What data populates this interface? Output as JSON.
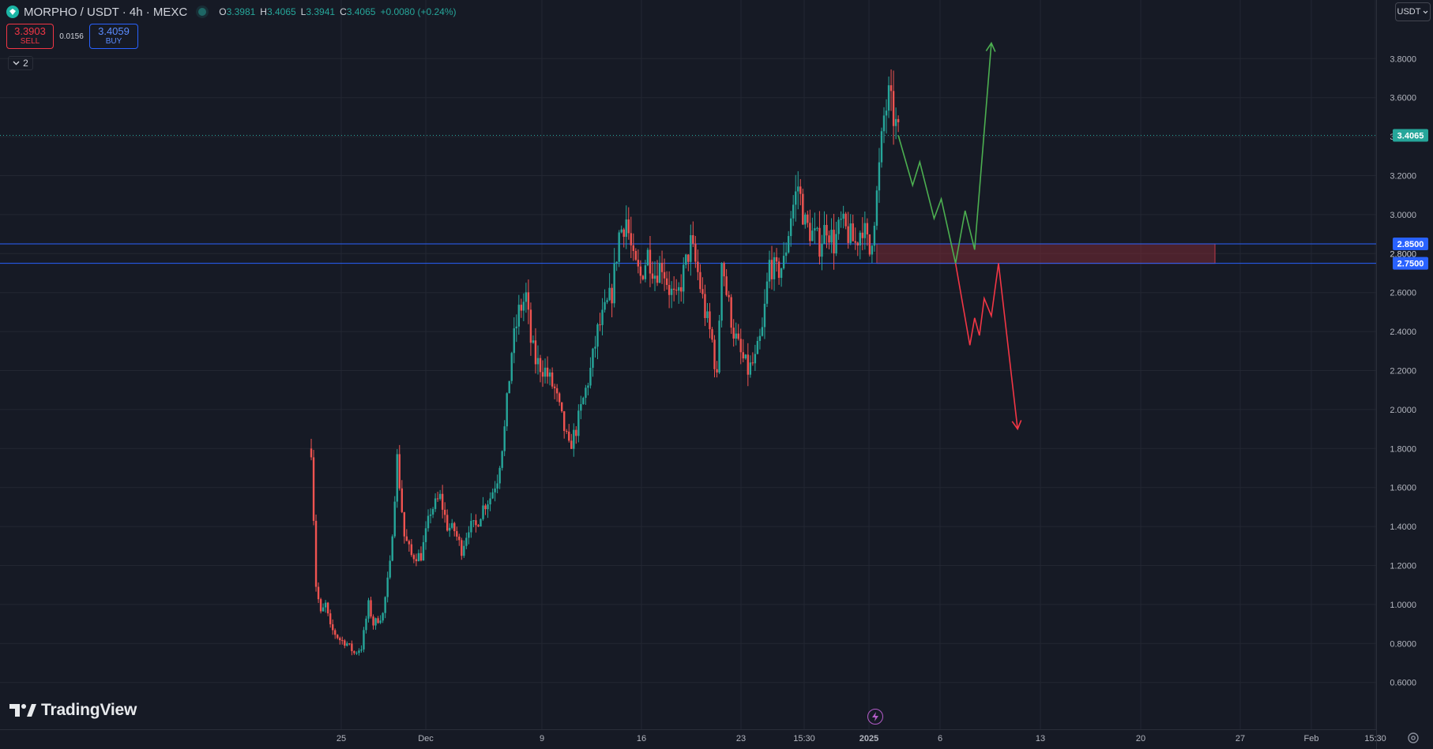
{
  "header": {
    "symbol_title": "MORPHO / USDT · 4h · MEXC",
    "ohlc": {
      "o_key": "O",
      "o_val": "3.3981",
      "h_key": "H",
      "h_val": "3.4065",
      "l_key": "L",
      "l_val": "3.3941",
      "c_key": "C",
      "c_val": "3.4065",
      "change": "+0.0080 (+0.24%)"
    }
  },
  "trade_panel": {
    "sell_price": "3.3903",
    "sell_label": "SELL",
    "spread": "0.0156",
    "buy_price": "3.4059",
    "buy_label": "BUY"
  },
  "indicators_toggle": {
    "count": "2"
  },
  "currency_selector": {
    "value": "USDT"
  },
  "branding": {
    "logo_text": "TradingView"
  },
  "colors": {
    "background": "#161a25",
    "grid": "#232732",
    "up": "#26a69a",
    "down": "#ef5350",
    "level_line": "#2962ff",
    "zone_fill": "#7a2a34",
    "bull_path": "#4caf50",
    "bear_path": "#f23645",
    "last_price": "#26a69a"
  },
  "chart_data": {
    "type": "candlestick",
    "pair": "MORPHO / USDT",
    "interval": "4h",
    "exchange": "MEXC",
    "y_axis": {
      "range": [
        0.5,
        3.9
      ],
      "ticks": [
        0.6,
        0.8,
        1.0,
        1.2,
        1.4,
        1.6,
        1.8,
        2.0,
        2.2,
        2.4,
        2.6,
        2.8,
        3.0,
        3.2,
        3.4,
        3.6,
        3.8
      ],
      "tick_labels": [
        "0.6000",
        "0.8000",
        "1.0000",
        "1.2000",
        "1.4000",
        "1.6000",
        "1.8000",
        "2.0000",
        "2.2000",
        "2.4000",
        "2.6000",
        "2.8000",
        "3.0000",
        "3.2000",
        "3.4000",
        "3.6000",
        "3.8000"
      ]
    },
    "x_axis": {
      "tick_labels": [
        "25",
        "Dec",
        "9",
        "16",
        "23",
        "15:30",
        "2025",
        "6",
        "13",
        "20",
        "27",
        "Feb",
        "15:30"
      ],
      "bold_label": "2025"
    },
    "close_path": [
      [
        "Nov 22 00:00",
        1.8
      ],
      [
        "Nov 22 08:00",
        1.1
      ],
      [
        "Nov 22 16:00",
        0.95
      ],
      [
        "Nov 23 00:00",
        1.0
      ],
      [
        "Nov 23 08:00",
        0.88
      ],
      [
        "Nov 23 16:00",
        0.85
      ],
      [
        "Nov 24 00:00",
        0.82
      ],
      [
        "Nov 24 12:00",
        0.8
      ],
      [
        "Nov 25 00:00",
        0.75
      ],
      [
        "Nov 25 12:00",
        0.78
      ],
      [
        "Nov 26 00:00",
        1.0
      ],
      [
        "Nov 26 08:00",
        0.9
      ],
      [
        "Nov 27 00:00",
        0.95
      ],
      [
        "Nov 27 12:00",
        1.2
      ],
      [
        "Nov 28 00:00",
        1.75
      ],
      [
        "Nov 28 12:00",
        1.35
      ],
      [
        "Nov 29 00:00",
        1.25
      ],
      [
        "Nov 29 16:00",
        1.25
      ],
      [
        "Nov 30 08:00",
        1.48
      ],
      [
        "Dec 01 00:00",
        1.55
      ],
      [
        "Dec 01 12:00",
        1.4
      ],
      [
        "Dec 02 00:00",
        1.38
      ],
      [
        "Dec 02 12:00",
        1.28
      ],
      [
        "Dec 03 00:00",
        1.4
      ],
      [
        "Dec 03 12:00",
        1.4
      ],
      [
        "Dec 04 00:00",
        1.5
      ],
      [
        "Dec 04 12:00",
        1.55
      ],
      [
        "Dec 05 00:00",
        1.65
      ],
      [
        "Dec 05 12:00",
        1.9
      ],
      [
        "Dec 06 00:00",
        2.3
      ],
      [
        "Dec 06 12:00",
        2.5
      ],
      [
        "Dec 07 00:00",
        2.58
      ],
      [
        "Dec 07 08:00",
        2.35
      ],
      [
        "Dec 07 16:00",
        2.25
      ],
      [
        "Dec 08 08:00",
        2.2
      ],
      [
        "Dec 09 00:00",
        2.1
      ],
      [
        "Dec 09 12:00",
        1.95
      ],
      [
        "Dec 10 00:00",
        1.8
      ],
      [
        "Dec 10 12:00",
        1.9
      ],
      [
        "Dec 11 00:00",
        2.05
      ],
      [
        "Dec 11 12:00",
        2.2
      ],
      [
        "Dec 12 00:00",
        2.4
      ],
      [
        "Dec 12 12:00",
        2.5
      ],
      [
        "Dec 13 00:00",
        2.6
      ],
      [
        "Dec 13 12:00",
        2.9
      ],
      [
        "Dec 14 00:00",
        2.98
      ],
      [
        "Dec 14 12:00",
        2.75
      ],
      [
        "Dec 15 00:00",
        2.68
      ],
      [
        "Dec 15 12:00",
        2.8
      ],
      [
        "Dec 16 00:00",
        2.7
      ],
      [
        "Dec 16 12:00",
        2.75
      ],
      [
        "Dec 17 00:00",
        2.62
      ],
      [
        "Dec 17 12:00",
        2.55
      ],
      [
        "Dec 18 00:00",
        2.7
      ],
      [
        "Dec 18 12:00",
        2.85
      ],
      [
        "Dec 19 00:00",
        2.7
      ],
      [
        "Dec 19 12:00",
        2.5
      ],
      [
        "Dec 20 00:00",
        2.35
      ],
      [
        "Dec 20 08:00",
        2.15
      ],
      [
        "Dec 20 16:00",
        2.8
      ],
      [
        "Dec 21 00:00",
        2.6
      ],
      [
        "Dec 21 12:00",
        2.4
      ],
      [
        "Dec 22 00:00",
        2.28
      ],
      [
        "Dec 22 12:00",
        2.2
      ],
      [
        "Dec 23 00:00",
        2.25
      ],
      [
        "Dec 23 12:00",
        2.4
      ],
      [
        "Dec 24 00:00",
        2.75
      ],
      [
        "Dec 24 12:00",
        2.7
      ],
      [
        "Dec 25 00:00",
        2.75
      ],
      [
        "Dec 25 12:00",
        3.0
      ],
      [
        "Dec 26 00:00",
        3.15
      ],
      [
        "Dec 26 12:00",
        2.95
      ],
      [
        "Dec 27 00:00",
        2.9
      ],
      [
        "Dec 27 12:00",
        2.85
      ],
      [
        "Dec 28 00:00",
        2.95
      ],
      [
        "Dec 28 12:00",
        2.85
      ],
      [
        "Dec 29 00:00",
        2.95
      ],
      [
        "Dec 29 12:00",
        2.9
      ],
      [
        "Dec 30 00:00",
        2.85
      ],
      [
        "Dec 30 12:00",
        2.95
      ],
      [
        "Dec 31 00:00",
        2.8
      ],
      [
        "Dec 31 12:00",
        3.1
      ],
      [
        "Jan 01 00:00",
        3.5
      ],
      [
        "Jan 01 08:00",
        3.6
      ],
      [
        "Jan 01 16:00",
        3.5
      ],
      [
        "Jan 02 00:00",
        3.4065
      ]
    ],
    "levels": [
      {
        "label": "2.8500",
        "price": 2.85
      },
      {
        "label": "2.7500",
        "price": 2.75
      }
    ],
    "hidden_tick_label": "2.8000",
    "last_price": {
      "label": "3.4065",
      "price": 3.4065
    },
    "zone": {
      "from_price": 2.75,
      "to_price": 2.85
    },
    "projection_bull": [
      [
        "Jan 02 00:00",
        3.4065
      ],
      [
        "Jan 03 00:00",
        3.15
      ],
      [
        "Jan 03 12:00",
        3.27
      ],
      [
        "Jan 04 12:00",
        2.98
      ],
      [
        "Jan 05 00:00",
        3.08
      ],
      [
        "Jan 06 00:00",
        2.75
      ],
      [
        "Jan 06 16:00",
        3.02
      ],
      [
        "Jan 07 08:00",
        2.82
      ],
      [
        "Jan 08 12:00",
        3.88
      ]
    ],
    "projection_bear": [
      [
        "Jan 06 00:00",
        2.75
      ],
      [
        "Jan 07 00:00",
        2.33
      ],
      [
        "Jan 07 08:00",
        2.47
      ],
      [
        "Jan 07 16:00",
        2.38
      ],
      [
        "Jan 08 00:00",
        2.57
      ],
      [
        "Jan 08 12:00",
        2.48
      ],
      [
        "Jan 09 00:00",
        2.75
      ],
      [
        "Jan 10 08:00",
        1.9
      ]
    ]
  }
}
